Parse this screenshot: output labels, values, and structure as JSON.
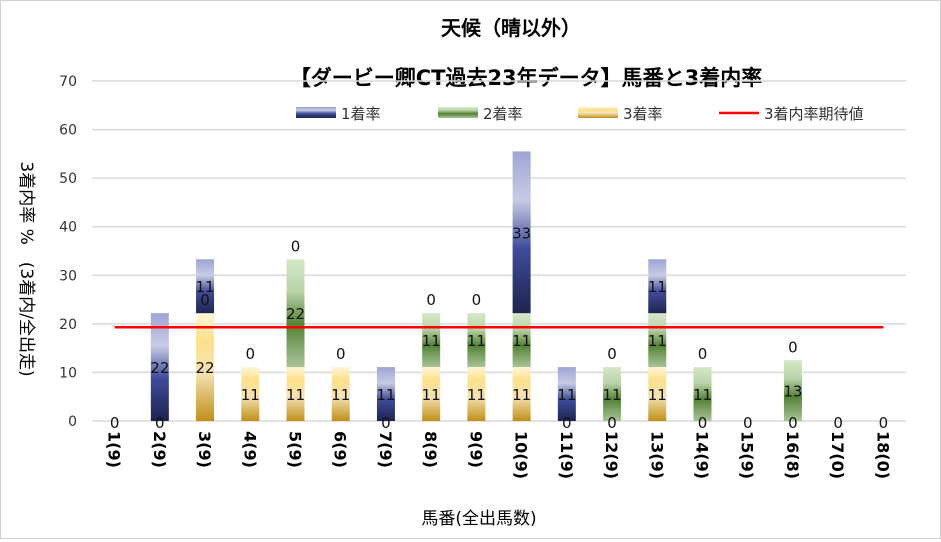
{
  "chart_data": {
    "type": "bar",
    "stacked": true,
    "title_lines": [
      "天候（晴以外）",
      "【ダービー卿CT過去23年データ】馬番と3着内率"
    ],
    "xlabel": "馬番(全出馬数)",
    "ylabel": "3着内率 %　(3着内/全出走)",
    "ylim": [
      0,
      70
    ],
    "yticks": [
      0,
      10,
      20,
      30,
      40,
      50,
      60,
      70
    ],
    "grid": true,
    "legend_position": "top-right",
    "categories": [
      "1(9)",
      "2(9)",
      "3(9)",
      "4(9)",
      "5(9)",
      "6(9)",
      "7(9)",
      "8(9)",
      "9(9)",
      "10(9)",
      "11(9)",
      "12(9)",
      "13(9)",
      "14(9)",
      "15(9)",
      "16(8)",
      "17(0)",
      "18(0)"
    ],
    "series": [
      {
        "name": "3着率",
        "color": "#c8961e",
        "values": [
          0,
          0,
          22.2,
          11.1,
          11.1,
          11.1,
          0,
          11.1,
          11.1,
          11.1,
          0,
          0,
          11.1,
          0,
          0,
          0,
          0,
          0
        ],
        "labels": [
          "0",
          "0",
          "22",
          "11",
          "11",
          "11",
          "0",
          "11",
          "11",
          "11",
          "0",
          "0",
          "11",
          "0",
          "0",
          "0",
          "0",
          "0"
        ]
      },
      {
        "name": "2着率",
        "color": "#548235",
        "values": [
          0,
          0,
          0,
          0,
          22.2,
          0,
          0,
          11.1,
          11.1,
          11.1,
          0,
          11.1,
          11.1,
          11.1,
          0,
          12.5,
          0,
          0
        ],
        "labels": [
          null,
          null,
          "0",
          "0",
          "22",
          "0",
          null,
          "11",
          "11",
          "11",
          null,
          "11",
          "11",
          "11",
          null,
          "13",
          null,
          null
        ]
      },
      {
        "name": "1着率",
        "color": "#2f3a8a",
        "values": [
          0,
          22.2,
          11.1,
          0,
          0,
          0,
          11.1,
          0,
          0,
          33.3,
          11.1,
          0,
          11.1,
          0,
          0,
          0,
          0,
          0
        ],
        "labels": [
          null,
          "22",
          "11",
          null,
          "0",
          null,
          "11",
          "0",
          "0",
          "33",
          "11",
          "0",
          "11",
          "0",
          null,
          "0",
          null,
          null
        ]
      }
    ],
    "reference_line": {
      "name": "3着内率期待値",
      "value": 19.3,
      "color": "#ff0000"
    }
  }
}
